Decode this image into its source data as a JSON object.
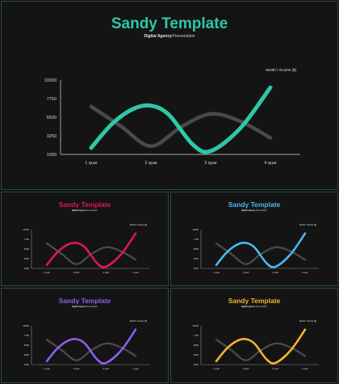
{
  "slides": [
    {
      "title": "Sandy  Template",
      "subtitle_bold": "Digital Agency",
      "subtitle_rest": "Presentation",
      "accent": "#2ec7a8",
      "title_color": "#2ec7a8"
    },
    {
      "title": "Sandy  Template",
      "subtitle_bold": "Digital Agency",
      "subtitle_rest": "Presentation",
      "accent": "#e0145f",
      "title_color": "#e0145f"
    },
    {
      "title": "Sandy  Template",
      "subtitle_bold": "Digital Agency",
      "subtitle_rest": "Presentation",
      "accent": "#4ab8f2",
      "title_color": "#4ab8f2"
    },
    {
      "title": "Sandy  Template",
      "subtitle_bold": "Digital Agency",
      "subtitle_rest": "Presentation",
      "accent": "#8f5cf0",
      "title_color": "#8f5cf0"
    },
    {
      "title": "Sandy  Template",
      "subtitle_bold": "Digital Agency",
      "subtitle_rest": "Presentation",
      "accent": "#f2b52e",
      "title_color": "#f2b52e"
    }
  ],
  "chart_data": {
    "type": "line",
    "legend_text": "Month  / Income ($)",
    "categories": [
      "1 quar",
      "2 quar",
      "3 quar",
      "4 quar"
    ],
    "y_ticks": [
      1000,
      3250,
      5500,
      7750,
      10000
    ],
    "ylim": [
      1000,
      10000
    ],
    "series": [
      {
        "color": "accent",
        "x": [
          1,
          1.35,
          1.7,
          2,
          2.3,
          2.7,
          3,
          3.5,
          4
        ],
        "values": [
          1800,
          4700,
          6500,
          6900,
          5800,
          2200,
          1400,
          4200,
          9100
        ]
      },
      {
        "color": "#4a4a4a",
        "x": [
          1,
          1.5,
          2,
          2.5,
          3,
          3.5,
          4
        ],
        "values": [
          6800,
          4400,
          2000,
          4300,
          5900,
          5000,
          3000
        ]
      }
    ],
    "grid": false
  }
}
